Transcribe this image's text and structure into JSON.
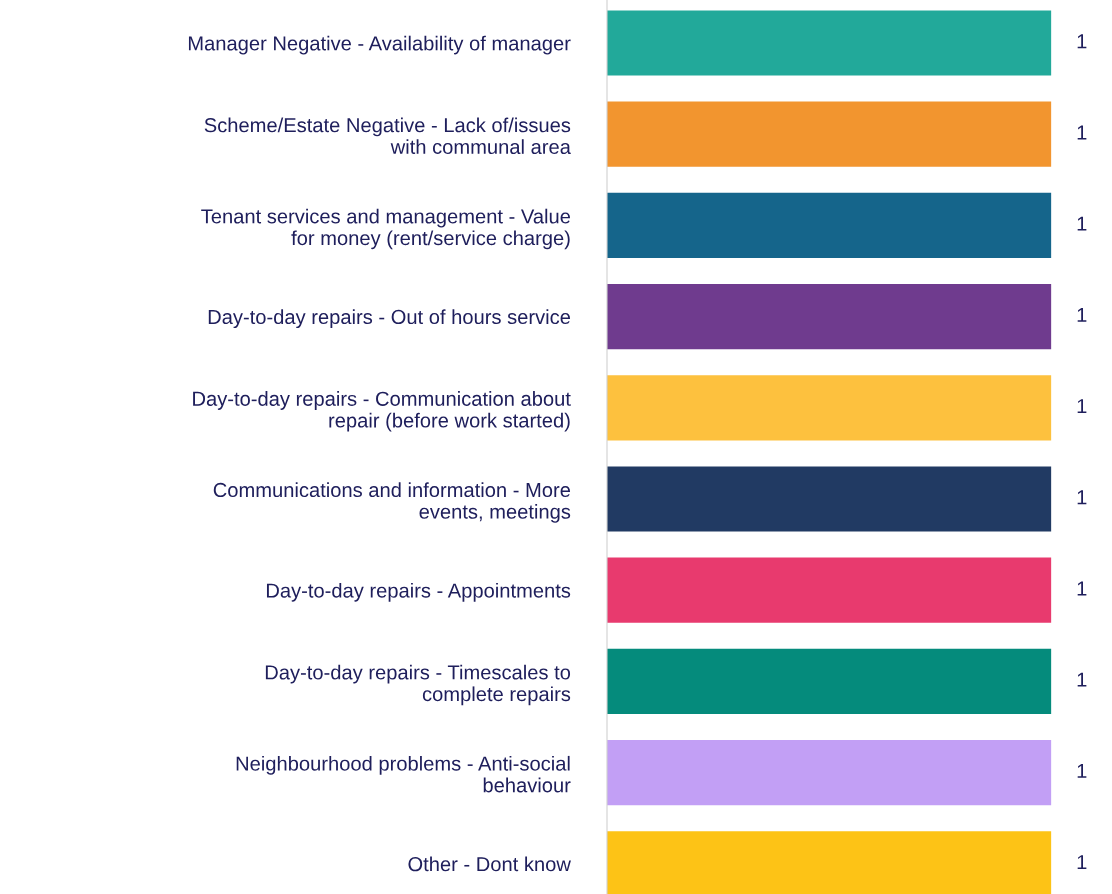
{
  "chart_data": {
    "type": "bar",
    "orientation": "horizontal",
    "data_labels": true,
    "grid": false,
    "legend": false,
    "tick_labels": "y",
    "categories": [
      "Manager Negative - Availability of manager",
      "Scheme/Estate Negative - Lack of/issues\nwith communal area",
      "Tenant services and management - Value\nfor money (rent/service charge)",
      "Day-to-day repairs - Out of hours service",
      "Day-to-day repairs - Communication about\nrepair (before work started)",
      "Communications and information - More\nevents, meetings",
      "Day-to-day repairs - Appointments",
      "Day-to-day repairs - Timescales to\ncomplete repairs",
      "Neighbourhood problems - Anti-social\nbehaviour",
      "Other - Dont know"
    ],
    "values": [
      1,
      1,
      1,
      1,
      1,
      1,
      1,
      1,
      1,
      1
    ],
    "colors": [
      "#22a99a",
      "#f2952f",
      "#15658b",
      "#6f3b8e",
      "#fdc13e",
      "#213a63",
      "#e83a6e",
      "#058b7c",
      "#c29ff5",
      "#fdc316"
    ]
  }
}
